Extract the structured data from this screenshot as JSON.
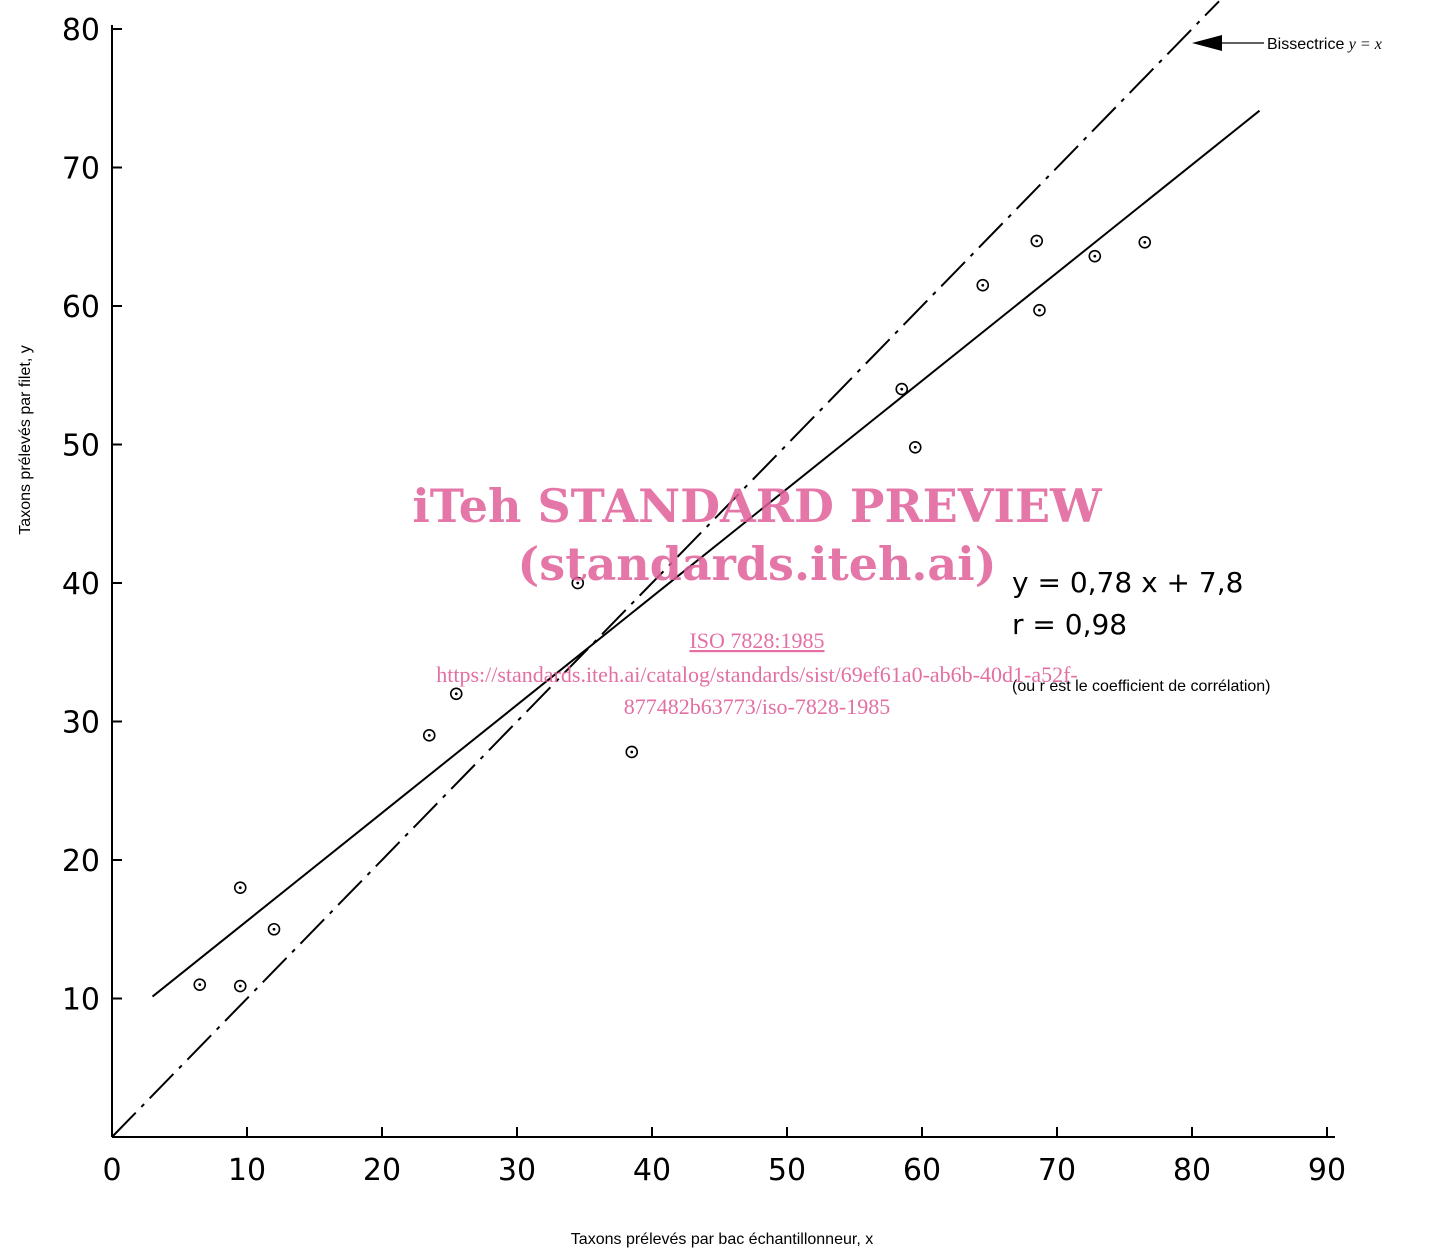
{
  "chart_data": {
    "type": "scatter",
    "xlabel": "Taxons prélevés par bac échantillonneur, x",
    "ylabel": "Taxons prélevés par filet, y",
    "xlim": [
      0,
      90
    ],
    "ylim": [
      0,
      80
    ],
    "x_ticks": [
      0,
      10,
      20,
      30,
      40,
      50,
      60,
      70,
      80,
      90
    ],
    "y_ticks": [
      10,
      20,
      30,
      40,
      50,
      60,
      70,
      80
    ],
    "grid": false,
    "points": [
      {
        "x": 6.5,
        "y": 11
      },
      {
        "x": 9.5,
        "y": 18
      },
      {
        "x": 9.5,
        "y": 10.9
      },
      {
        "x": 12,
        "y": 15
      },
      {
        "x": 23.5,
        "y": 29
      },
      {
        "x": 25.5,
        "y": 32
      },
      {
        "x": 34.5,
        "y": 40
      },
      {
        "x": 38.5,
        "y": 27.8
      },
      {
        "x": 58.5,
        "y": 54
      },
      {
        "x": 59.5,
        "y": 49.8
      },
      {
        "x": 64.5,
        "y": 61.5
      },
      {
        "x": 68.5,
        "y": 64.7
      },
      {
        "x": 68.7,
        "y": 59.7
      },
      {
        "x": 72.8,
        "y": 63.6
      },
      {
        "x": 76.5,
        "y": 64.6
      }
    ],
    "regression": {
      "slope": 0.78,
      "intercept": 7.8,
      "x_range": [
        3,
        85
      ]
    },
    "bisector": {
      "x_range": [
        0,
        82
      ]
    },
    "annotations": {
      "bisector_label_pre": "Bissectrice ",
      "bisector_label_eq": "y = x",
      "equation": "y = 0,78 x + 7,8",
      "r_value": "r = 0,98",
      "r_note": "(ou r est le coefficient de corrélation)"
    }
  },
  "watermark": {
    "line1": "iTeh STANDARD PREVIEW",
    "line2": "(standards.iteh.ai)",
    "line3": "ISO 7828:1985",
    "line4": "https://standards.iteh.ai/catalog/standards/sist/69ef61a0-ab6b-40d1-a52f-",
    "line5": "877482b63773/iso-7828-1985",
    "color": "#e0609a"
  }
}
